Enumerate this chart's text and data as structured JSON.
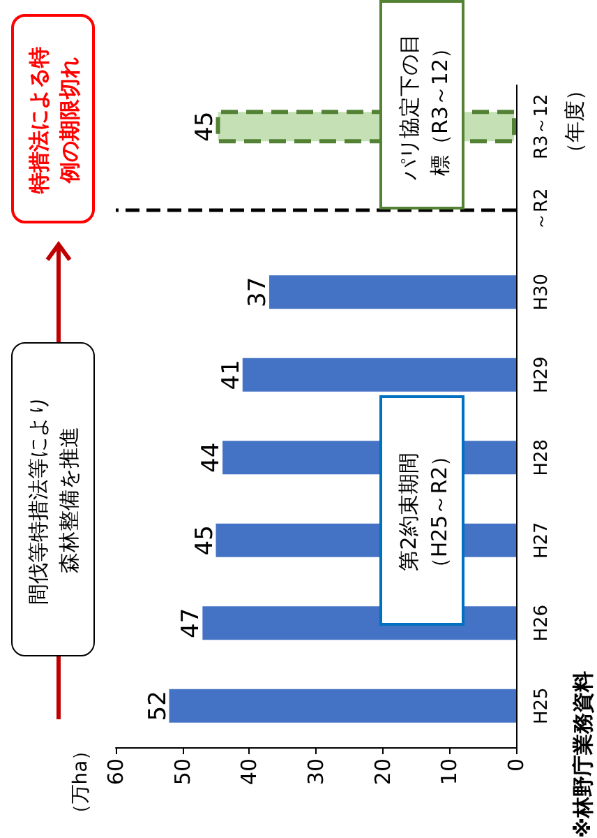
{
  "chart_data": {
    "type": "bar",
    "orientation": "horizontal",
    "ylabel": "（万ha）",
    "categories": [
      "R3～12",
      "～R2",
      "H30",
      "H29",
      "H28",
      "H27",
      "H26",
      "H25"
    ],
    "series": [
      {
        "color": "#4472c4",
        "values": [
          null,
          null,
          37,
          41,
          44,
          45,
          47,
          52
        ]
      },
      {
        "color": "#c5e0b4",
        "line_style": "dashed",
        "values": [
          45,
          null,
          null,
          null,
          null,
          null,
          null,
          null
        ]
      }
    ],
    "xlim": [
      60,
      0
    ],
    "xticks": [
      60,
      50,
      40,
      30,
      20,
      10,
      0
    ],
    "data_labels": true,
    "grid": false,
    "ref_lines": [
      {
        "axis": "y",
        "value": "～R2",
        "color": "#000000",
        "line_style": "dashed"
      }
    ],
    "annotations": [
      "間伐等特措法等により森林整備を推進",
      "特措法による特例の期限切れ",
      "第2約束期間（H25～R2）",
      "パリ協定下の目標（R3～12）",
      "※林野庁業務資料",
      "（年度）"
    ]
  }
}
